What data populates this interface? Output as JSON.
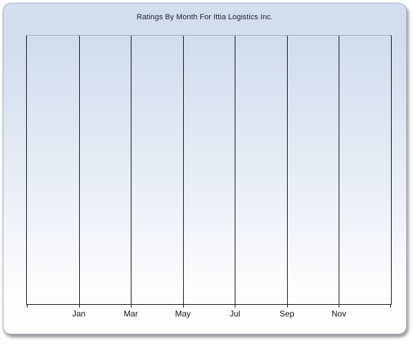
{
  "chart_data": {
    "type": "line",
    "title": "Ratings By Month For Ittia Logistics Inc.",
    "xlabel": "",
    "ylabel": "",
    "x_tick_labels": [
      "Jan",
      "Mar",
      "May",
      "Jul",
      "Sep",
      "Nov"
    ],
    "x_intervals": 7,
    "series": [],
    "grid": "vertical-major-only",
    "legend": "none",
    "y_axis_labels_visible": false,
    "plot_state": "empty (no data points rendered)"
  },
  "colors": {
    "panel_border": "#a9b4cb",
    "panel_gradient_top": "#d3dfef",
    "panel_gradient_bottom": "#ffffff",
    "gridline": "#141414",
    "plot_top_border": "#9fb0c8",
    "title_text": "#1c1c26",
    "tick_label_text": "#101010"
  }
}
